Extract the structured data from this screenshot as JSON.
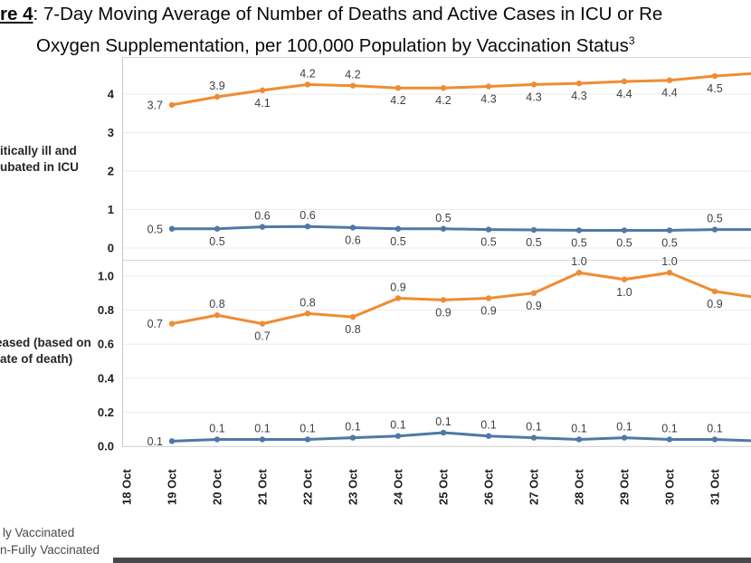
{
  "title": {
    "figure_prefix": "re 4",
    "line1_rest": ": 7-Day Moving Average of Number of Deaths and Active Cases in ICU or Re",
    "line2": "Oxygen Supplementation, per 100,000 Population by Vaccination Status",
    "superscript": "3"
  },
  "colors": {
    "fully_vaccinated": "#4e79a7",
    "non_fully_vaccinated": "#ef8c33",
    "gridline": "#ebebeb",
    "panel_border": "#d7d7d7",
    "axis_line": "#c9c9c9",
    "data_label": "#3f3f3f",
    "tick_label": "#1f1f1f",
    "bottom_bar": "#48484a"
  },
  "row_labels": [
    {
      "lines": [
        "itically ill and",
        "ubated in ICU"
      ]
    },
    {
      "lines": [
        "eased (based on",
        "ate of death)"
      ]
    }
  ],
  "legend": {
    "items": [
      {
        "label": "ly Vaccinated",
        "series": "fully_vaccinated"
      },
      {
        "label": "n-Fully Vaccinated",
        "series": "non_fully_vaccinated"
      }
    ]
  },
  "chart_data": {
    "type": "line",
    "grid": "horizontal",
    "legend_position": "bottom-left",
    "categories": [
      "18 Oct",
      "19 Oct",
      "20 Oct",
      "21 Oct",
      "22 Oct",
      "23 Oct",
      "24 Oct",
      "25 Oct",
      "26 Oct",
      "27 Oct",
      "28 Oct",
      "29 Oct",
      "30 Oct",
      "31 Oct"
    ],
    "data_start_category_index": 1,
    "panels": [
      {
        "name": "icu-or-oxygen",
        "ylim": [
          0,
          4.7
        ],
        "ytick_values": [
          0,
          1,
          2,
          3,
          4
        ],
        "ytick_labels": [
          "0",
          "1",
          "2",
          "3",
          "4"
        ],
        "series": [
          {
            "name": "non_fully_vaccinated",
            "labels": [
              "3.7",
              "3.9",
              "4.1",
              "4.2",
              "4.2",
              "4.2",
              "4.2",
              "4.3",
              "4.3",
              "4.3",
              "4.4",
              "4.4",
              "4.5"
            ],
            "values": [
              3.7,
              3.9,
              4.1,
              4.2,
              4.2,
              4.2,
              4.2,
              4.3,
              4.3,
              4.3,
              4.4,
              4.4,
              4.5
            ],
            "plot_values": [
              3.72,
              3.93,
              4.1,
              4.25,
              4.22,
              4.16,
              4.16,
              4.2,
              4.25,
              4.28,
              4.33,
              4.36,
              4.47
            ],
            "label_pos": [
              "left",
              "above",
              "below",
              "above",
              "above",
              "below",
              "below",
              "below",
              "below",
              "below",
              "below",
              "below",
              "below"
            ],
            "edge_value": 4.55
          },
          {
            "name": "fully_vaccinated",
            "labels": [
              "0.5",
              "0.5",
              "0.6",
              "0.6",
              "0.6",
              "0.5",
              "0.5",
              "0.5",
              "0.5",
              "0.5",
              "0.5",
              "0.5",
              "0.5"
            ],
            "values": [
              0.5,
              0.5,
              0.6,
              0.6,
              0.6,
              0.5,
              0.5,
              0.5,
              0.5,
              0.5,
              0.5,
              0.5,
              0.5
            ],
            "plot_values": [
              0.5,
              0.5,
              0.55,
              0.56,
              0.53,
              0.5,
              0.5,
              0.48,
              0.47,
              0.46,
              0.46,
              0.46,
              0.48
            ],
            "label_pos": [
              "left",
              "below",
              "above",
              "above",
              "below",
              "below",
              "above",
              "below",
              "below",
              "below",
              "below",
              "below",
              "above"
            ],
            "edge_value": 0.48
          }
        ]
      },
      {
        "name": "deceased",
        "ylim": [
          0,
          1.1
        ],
        "ytick_values": [
          0,
          0.2,
          0.4,
          0.6,
          0.8,
          1.0
        ],
        "ytick_labels": [
          "0.0",
          "0.2",
          "0.4",
          "0.6",
          "0.8",
          "1.0"
        ],
        "series": [
          {
            "name": "non_fully_vaccinated",
            "labels": [
              "0.7",
              "0.8",
              "0.7",
              "0.8",
              "0.8",
              "0.9",
              "0.9",
              "0.9",
              "0.9",
              "1.0",
              "1.0",
              "1.0",
              "0.9"
            ],
            "values": [
              0.7,
              0.8,
              0.7,
              0.8,
              0.8,
              0.9,
              0.9,
              0.9,
              0.9,
              1.0,
              1.0,
              1.0,
              0.9
            ],
            "plot_values": [
              0.72,
              0.77,
              0.72,
              0.78,
              0.76,
              0.87,
              0.86,
              0.87,
              0.9,
              1.02,
              0.98,
              1.02,
              0.91
            ],
            "label_pos": [
              "left",
              "above",
              "below",
              "above",
              "below",
              "above",
              "below",
              "below",
              "below",
              "above",
              "below",
              "above",
              "below"
            ],
            "edge_value": 0.87
          },
          {
            "name": "fully_vaccinated",
            "labels": [
              "0.1",
              "0.1",
              "0.1",
              "0.1",
              "0.1",
              "0.1",
              "0.1",
              "0.1",
              "0.1",
              "0.1",
              "0.1",
              "0.1",
              "0.1"
            ],
            "values": [
              0.1,
              0.1,
              0.1,
              0.1,
              0.1,
              0.1,
              0.1,
              0.1,
              0.1,
              0.1,
              0.1,
              0.1,
              0.1
            ],
            "plot_values": [
              0.03,
              0.04,
              0.04,
              0.04,
              0.05,
              0.06,
              0.08,
              0.06,
              0.05,
              0.04,
              0.05,
              0.04,
              0.04
            ],
            "label_pos": [
              "left",
              "above",
              "above",
              "above",
              "above",
              "above",
              "above",
              "above",
              "above",
              "above",
              "above",
              "above",
              "above"
            ],
            "edge_value": 0.03
          }
        ]
      }
    ]
  }
}
